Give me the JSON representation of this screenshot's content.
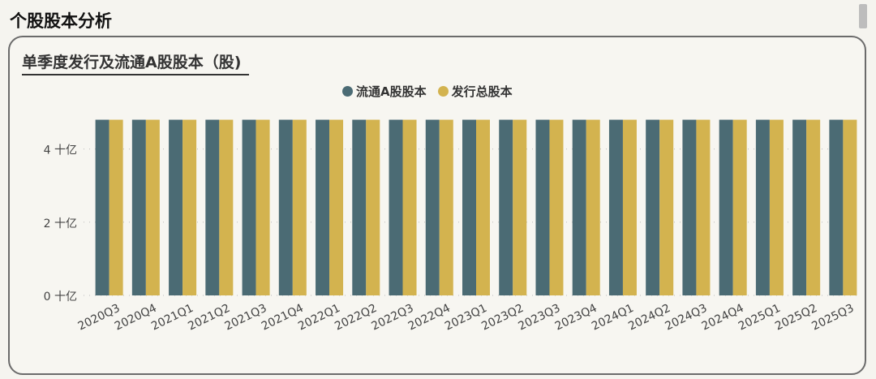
{
  "page": {
    "title": "个股股本分析"
  },
  "chart_data": {
    "type": "bar",
    "title": "单季度发行及流通A股股本（股)",
    "categories": [
      "2020Q3",
      "2020Q4",
      "2021Q1",
      "2021Q2",
      "2021Q3",
      "2021Q4",
      "2022Q1",
      "2022Q2",
      "2022Q3",
      "2022Q4",
      "2023Q1",
      "2023Q2",
      "2023Q3",
      "2023Q4",
      "2024Q1",
      "2024Q2",
      "2024Q3",
      "2024Q4",
      "2025Q1",
      "2025Q2",
      "2025Q3"
    ],
    "series": [
      {
        "name": "流通A股股本",
        "color": "#4b6b74",
        "values": [
          4.8,
          4.8,
          4.8,
          4.8,
          4.8,
          4.8,
          4.8,
          4.8,
          4.8,
          4.8,
          4.8,
          4.8,
          4.8,
          4.8,
          4.8,
          4.8,
          4.8,
          4.8,
          4.8,
          4.8,
          4.8
        ]
      },
      {
        "name": "发行总股本",
        "color": "#d3b34f",
        "values": [
          4.8,
          4.8,
          4.8,
          4.8,
          4.8,
          4.8,
          4.8,
          4.8,
          4.8,
          4.8,
          4.8,
          4.8,
          4.8,
          4.8,
          4.8,
          4.8,
          4.8,
          4.8,
          4.8,
          4.8,
          4.8
        ]
      }
    ],
    "y_ticks": [
      {
        "value": 0,
        "label": "0 十亿"
      },
      {
        "value": 2,
        "label": "2 十亿"
      },
      {
        "value": 4,
        "label": "4 十亿"
      }
    ],
    "ylim": [
      0,
      5.1
    ],
    "grid": "dotted-horizontal",
    "legend": "top-center"
  }
}
